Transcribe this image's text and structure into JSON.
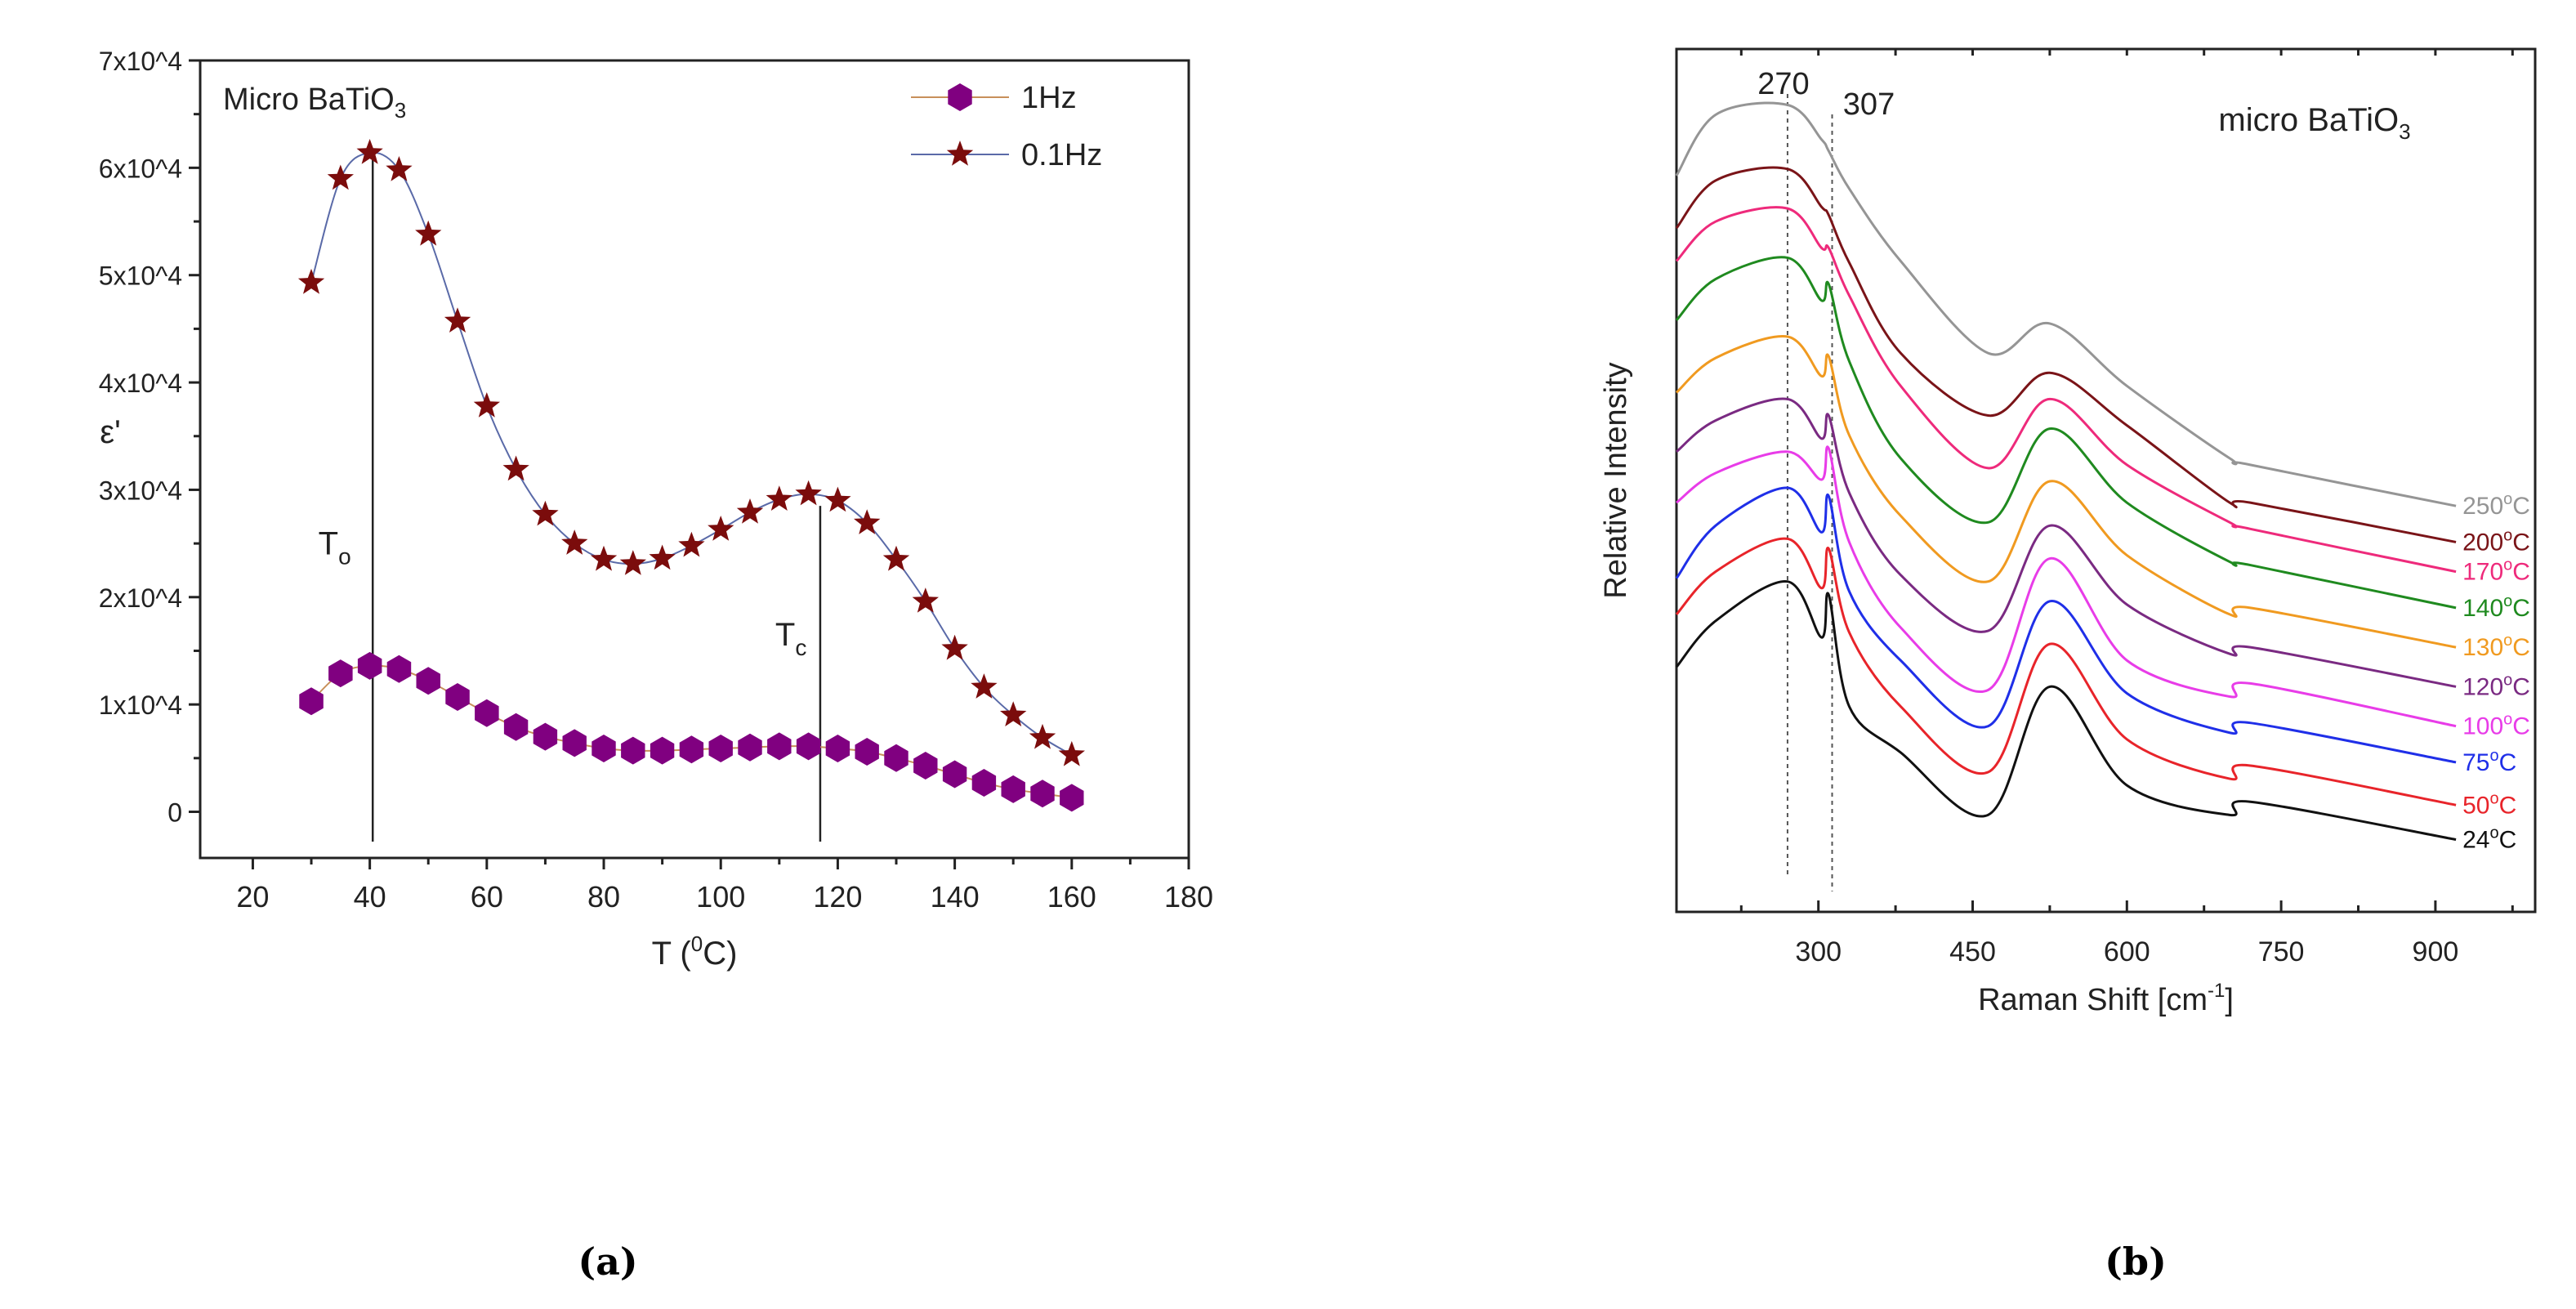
{
  "chart_data": [
    {
      "type": "line",
      "panel_label": "(a)",
      "title": "Micro BaTiO",
      "title_sub": "3",
      "xlabel": "T (",
      "xlabel_sup": "0",
      "xlabel_end": "C)",
      "ylabel": "ε'",
      "xlim": [
        11,
        180
      ],
      "ylim": [
        -4300,
        70000
      ],
      "xticks": [
        20,
        40,
        60,
        80,
        100,
        120,
        140,
        160,
        180
      ],
      "yticks": [
        0,
        10000,
        20000,
        30000,
        40000,
        50000,
        60000,
        70000
      ],
      "ytick_labels": [
        "0",
        "1x10^4",
        "2x10^4",
        "3x10^4",
        "4x10^4",
        "5x10^4",
        "6x10^4",
        "7x10^4"
      ],
      "legend_position": "top-right",
      "x": [
        30,
        35,
        40,
        45,
        50,
        55,
        60,
        65,
        70,
        75,
        80,
        85,
        90,
        95,
        100,
        105,
        110,
        115,
        120,
        125,
        130,
        135,
        140,
        145,
        150,
        155,
        160
      ],
      "series": [
        {
          "name": "1Hz",
          "marker": "hexagon",
          "color": "#800080",
          "line_color": "#c8905a",
          "values": [
            10300,
            12900,
            13600,
            13300,
            12200,
            10700,
            9200,
            7900,
            7000,
            6400,
            5900,
            5700,
            5700,
            5800,
            5900,
            6000,
            6100,
            6100,
            5900,
            5600,
            5000,
            4300,
            3500,
            2700,
            2100,
            1700,
            1300
          ]
        },
        {
          "name": "0.1Hz",
          "marker": "star",
          "color": "#7b0c0c",
          "line_color": "#5a6aa8",
          "values": [
            49300,
            59000,
            61400,
            59800,
            53800,
            45700,
            37800,
            31900,
            27700,
            25000,
            23500,
            23100,
            23600,
            24800,
            26300,
            27900,
            29100,
            29600,
            29000,
            26900,
            23500,
            19600,
            15200,
            11600,
            9000,
            6900,
            5300
          ]
        }
      ],
      "annotations": [
        {
          "text": "T",
          "sub": "o",
          "x": 40.5
        },
        {
          "text": "T",
          "sub": "c",
          "x": 117
        }
      ]
    },
    {
      "type": "line",
      "panel_label": "(b)",
      "title": "micro BaTiO",
      "title_sub": "3",
      "xlabel": "Raman Shift [cm",
      "xlabel_sup": "-1",
      "xlabel_end": "]",
      "ylabel": "Relative Intensity",
      "xlim": [
        162,
        997
      ],
      "ylim": [
        1,
        106
      ],
      "xticks": [
        300,
        450,
        600,
        750,
        900
      ],
      "reference_lines": [
        {
          "label": "270",
          "x": 270
        },
        {
          "label": "307",
          "x": 307
        }
      ],
      "x": [
        162,
        200,
        270,
        303,
        310,
        330,
        380,
        465,
        525,
        600,
        700,
        720,
        920
      ],
      "series": [
        {
          "name": "24",
          "label_sup": "o",
          "label_end": "C",
          "color": "#111111",
          "values": [
            30.8,
            36.4,
            41.2,
            34.4,
            39.6,
            26,
            20.4,
            12.8,
            28.4,
            16.4,
            12.8,
            14.4,
            9.8
          ]
        },
        {
          "name": "50",
          "label_sup": "o",
          "label_end": "C",
          "color": "#e8242a",
          "values": [
            37.2,
            42.4,
            46.4,
            40.4,
            45.2,
            35,
            26,
            18,
            33.6,
            22,
            17.2,
            18.8,
            14
          ]
        },
        {
          "name": "75",
          "label_sup": "o",
          "label_end": "C",
          "color": "#1f2fe8",
          "values": [
            41.6,
            48,
            52.6,
            47.2,
            51.6,
            40,
            31.6,
            23.6,
            38.8,
            27.6,
            22.8,
            24,
            19.2
          ]
        },
        {
          "name": "100",
          "label_sup": "o",
          "label_end": "C",
          "color": "#e83ce8",
          "values": [
            50.8,
            54.4,
            57,
            53.6,
            57.4,
            46,
            35.6,
            28,
            44,
            31.6,
            27.2,
            28.8,
            23.6
          ]
        },
        {
          "name": "120",
          "label_sup": "o",
          "label_end": "C",
          "color": "#7a2a82",
          "values": [
            57,
            60.8,
            63.4,
            58.6,
            61.4,
            52,
            42,
            35.2,
            48,
            38.4,
            32.4,
            33.2,
            28.4
          ]
        },
        {
          "name": "130",
          "label_sup": "o",
          "label_end": "C",
          "color": "#f09a20",
          "values": [
            64.2,
            68.4,
            71,
            66.2,
            68.6,
            59,
            49.2,
            41.2,
            53.4,
            44.4,
            37.2,
            38,
            33.2
          ]
        },
        {
          "name": "140",
          "label_sup": "o",
          "label_end": "C",
          "color": "#1f8a1f",
          "values": [
            73,
            78,
            80.6,
            75.4,
            77.4,
            68,
            56.2,
            48.4,
            59.8,
            50.8,
            43.6,
            43.2,
            38
          ]
        },
        {
          "name": "170",
          "label_sup": "o",
          "label_end": "C",
          "color": "#ee2a7b",
          "values": [
            80.2,
            85,
            86.6,
            81.8,
            81.8,
            76,
            65,
            55,
            63.4,
            55.4,
            48.4,
            47.6,
            42.4
          ]
        },
        {
          "name": "200",
          "label_sup": "o",
          "label_end": "C",
          "color": "#7a1418",
          "values": [
            84.2,
            90,
            91.4,
            86.8,
            85.8,
            80,
            69,
            61.4,
            66.6,
            60.2,
            50.8,
            50.8,
            46
          ]
        },
        {
          "name": "250",
          "label_sup": "o",
          "label_end": "C",
          "color": "#959595",
          "values": [
            90.6,
            98,
            99.2,
            95,
            93.6,
            89,
            80.2,
            69,
            72.6,
            65,
            56.2,
            55.4,
            50.4
          ]
        }
      ]
    }
  ]
}
